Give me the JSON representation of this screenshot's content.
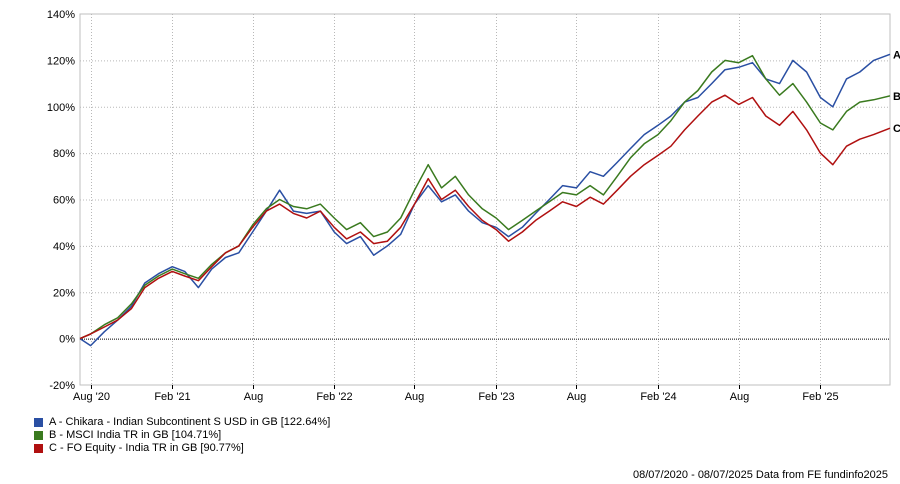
{
  "chart_data": {
    "type": "line",
    "title": "",
    "xlabel": "",
    "ylabel": "",
    "ylim": [
      -20,
      140
    ],
    "y_ticks": [
      -20,
      0,
      20,
      40,
      60,
      80,
      100,
      120,
      140
    ],
    "y_tick_labels": [
      "-20%",
      "0%",
      "20%",
      "40%",
      "60%",
      "80%",
      "100%",
      "120%",
      "140%"
    ],
    "x_ticks": [
      {
        "date": "2020-08-01",
        "label": "Aug '20"
      },
      {
        "date": "2021-02-01",
        "label": "Feb '21"
      },
      {
        "date": "2021-08-01",
        "label": "Aug"
      },
      {
        "date": "2022-02-01",
        "label": "Feb '22"
      },
      {
        "date": "2022-08-01",
        "label": "Aug"
      },
      {
        "date": "2023-02-01",
        "label": "Feb '23"
      },
      {
        "date": "2023-08-01",
        "label": "Aug"
      },
      {
        "date": "2024-02-01",
        "label": "Feb '24"
      },
      {
        "date": "2024-08-01",
        "label": "Aug"
      },
      {
        "date": "2025-02-01",
        "label": "Feb '25"
      }
    ],
    "xlim": [
      "2020-07-08",
      "2025-07-08"
    ],
    "grid": true,
    "legend_position": "bottom-left",
    "series": [
      {
        "name": "A - Chikara - Indian Subcontinent S USD in GB [122.64%]",
        "end_label": "A",
        "color": "#2a4fa3",
        "points": [
          [
            "2020-07-08",
            0
          ],
          [
            "2020-08-01",
            -3
          ],
          [
            "2020-09-01",
            3
          ],
          [
            "2020-10-01",
            8
          ],
          [
            "2020-11-01",
            14
          ],
          [
            "2020-12-01",
            24
          ],
          [
            "2021-01-01",
            28
          ],
          [
            "2021-02-01",
            31
          ],
          [
            "2021-03-01",
            29
          ],
          [
            "2021-04-01",
            22
          ],
          [
            "2021-05-01",
            30
          ],
          [
            "2021-06-01",
            35
          ],
          [
            "2021-07-01",
            37
          ],
          [
            "2021-08-01",
            46
          ],
          [
            "2021-09-01",
            55
          ],
          [
            "2021-10-01",
            64
          ],
          [
            "2021-11-01",
            55
          ],
          [
            "2021-12-01",
            54
          ],
          [
            "2022-01-01",
            55
          ],
          [
            "2022-02-01",
            46
          ],
          [
            "2022-03-01",
            41
          ],
          [
            "2022-04-01",
            44
          ],
          [
            "2022-05-01",
            36
          ],
          [
            "2022-06-01",
            40
          ],
          [
            "2022-07-01",
            45
          ],
          [
            "2022-08-01",
            58
          ],
          [
            "2022-09-01",
            66
          ],
          [
            "2022-10-01",
            59
          ],
          [
            "2022-11-01",
            62
          ],
          [
            "2022-12-01",
            55
          ],
          [
            "2023-01-01",
            50
          ],
          [
            "2023-02-01",
            48
          ],
          [
            "2023-03-01",
            44
          ],
          [
            "2023-04-01",
            48
          ],
          [
            "2023-05-01",
            54
          ],
          [
            "2023-06-01",
            60
          ],
          [
            "2023-07-01",
            66
          ],
          [
            "2023-08-01",
            65
          ],
          [
            "2023-09-01",
            72
          ],
          [
            "2023-10-01",
            70
          ],
          [
            "2023-11-01",
            76
          ],
          [
            "2023-12-01",
            82
          ],
          [
            "2024-01-01",
            88
          ],
          [
            "2024-02-01",
            92
          ],
          [
            "2024-03-01",
            96
          ],
          [
            "2024-04-01",
            102
          ],
          [
            "2024-05-01",
            104
          ],
          [
            "2024-06-01",
            110
          ],
          [
            "2024-07-01",
            116
          ],
          [
            "2024-08-01",
            117
          ],
          [
            "2024-09-01",
            119
          ],
          [
            "2024-10-01",
            112
          ],
          [
            "2024-11-01",
            110
          ],
          [
            "2024-12-01",
            120
          ],
          [
            "2025-01-01",
            115
          ],
          [
            "2025-02-01",
            104
          ],
          [
            "2025-03-01",
            100
          ],
          [
            "2025-04-01",
            112
          ],
          [
            "2025-05-01",
            115
          ],
          [
            "2025-06-01",
            120
          ],
          [
            "2025-07-08",
            122.64
          ]
        ]
      },
      {
        "name": "B - MSCI India TR in GB [104.71%]",
        "end_label": "B",
        "color": "#3a7a1f",
        "points": [
          [
            "2020-07-08",
            0
          ],
          [
            "2020-08-01",
            2
          ],
          [
            "2020-09-01",
            6
          ],
          [
            "2020-10-01",
            9
          ],
          [
            "2020-11-01",
            15
          ],
          [
            "2020-12-01",
            23
          ],
          [
            "2021-01-01",
            27
          ],
          [
            "2021-02-01",
            30
          ],
          [
            "2021-03-01",
            28
          ],
          [
            "2021-04-01",
            26
          ],
          [
            "2021-05-01",
            32
          ],
          [
            "2021-06-01",
            37
          ],
          [
            "2021-07-01",
            40
          ],
          [
            "2021-08-01",
            49
          ],
          [
            "2021-09-01",
            56
          ],
          [
            "2021-10-01",
            60
          ],
          [
            "2021-11-01",
            57
          ],
          [
            "2021-12-01",
            56
          ],
          [
            "2022-01-01",
            58
          ],
          [
            "2022-02-01",
            52
          ],
          [
            "2022-03-01",
            47
          ],
          [
            "2022-04-01",
            50
          ],
          [
            "2022-05-01",
            44
          ],
          [
            "2022-06-01",
            46
          ],
          [
            "2022-07-01",
            52
          ],
          [
            "2022-08-01",
            64
          ],
          [
            "2022-09-01",
            75
          ],
          [
            "2022-10-01",
            65
          ],
          [
            "2022-11-01",
            70
          ],
          [
            "2022-12-01",
            62
          ],
          [
            "2023-01-01",
            56
          ],
          [
            "2023-02-01",
            52
          ],
          [
            "2023-03-01",
            47
          ],
          [
            "2023-04-01",
            51
          ],
          [
            "2023-05-01",
            55
          ],
          [
            "2023-06-01",
            59
          ],
          [
            "2023-07-01",
            63
          ],
          [
            "2023-08-01",
            62
          ],
          [
            "2023-09-01",
            66
          ],
          [
            "2023-10-01",
            62
          ],
          [
            "2023-11-01",
            70
          ],
          [
            "2023-12-01",
            78
          ],
          [
            "2024-01-01",
            84
          ],
          [
            "2024-02-01",
            88
          ],
          [
            "2024-03-01",
            94
          ],
          [
            "2024-04-01",
            102
          ],
          [
            "2024-05-01",
            107
          ],
          [
            "2024-06-01",
            115
          ],
          [
            "2024-07-01",
            120
          ],
          [
            "2024-08-01",
            119
          ],
          [
            "2024-09-01",
            122
          ],
          [
            "2024-10-01",
            112
          ],
          [
            "2024-11-01",
            105
          ],
          [
            "2024-12-01",
            110
          ],
          [
            "2025-01-01",
            102
          ],
          [
            "2025-02-01",
            93
          ],
          [
            "2025-03-01",
            90
          ],
          [
            "2025-04-01",
            98
          ],
          [
            "2025-05-01",
            102
          ],
          [
            "2025-06-01",
            103
          ],
          [
            "2025-07-08",
            104.71
          ]
        ]
      },
      {
        "name": "C - FO Equity - India TR in GB [90.77%]",
        "end_label": "C",
        "color": "#b01010",
        "points": [
          [
            "2020-07-08",
            0
          ],
          [
            "2020-08-01",
            2
          ],
          [
            "2020-09-01",
            5
          ],
          [
            "2020-10-01",
            8
          ],
          [
            "2020-11-01",
            13
          ],
          [
            "2020-12-01",
            22
          ],
          [
            "2021-01-01",
            26
          ],
          [
            "2021-02-01",
            29
          ],
          [
            "2021-03-01",
            27
          ],
          [
            "2021-04-01",
            25
          ],
          [
            "2021-05-01",
            31
          ],
          [
            "2021-06-01",
            37
          ],
          [
            "2021-07-01",
            40
          ],
          [
            "2021-08-01",
            48
          ],
          [
            "2021-09-01",
            55
          ],
          [
            "2021-10-01",
            58
          ],
          [
            "2021-11-01",
            54
          ],
          [
            "2021-12-01",
            52
          ],
          [
            "2022-01-01",
            55
          ],
          [
            "2022-02-01",
            48
          ],
          [
            "2022-03-01",
            43
          ],
          [
            "2022-04-01",
            46
          ],
          [
            "2022-05-01",
            41
          ],
          [
            "2022-06-01",
            42
          ],
          [
            "2022-07-01",
            48
          ],
          [
            "2022-08-01",
            58
          ],
          [
            "2022-09-01",
            69
          ],
          [
            "2022-10-01",
            60
          ],
          [
            "2022-11-01",
            64
          ],
          [
            "2022-12-01",
            57
          ],
          [
            "2023-01-01",
            51
          ],
          [
            "2023-02-01",
            47
          ],
          [
            "2023-03-01",
            42
          ],
          [
            "2023-04-01",
            46
          ],
          [
            "2023-05-01",
            51
          ],
          [
            "2023-06-01",
            55
          ],
          [
            "2023-07-01",
            59
          ],
          [
            "2023-08-01",
            57
          ],
          [
            "2023-09-01",
            61
          ],
          [
            "2023-10-01",
            58
          ],
          [
            "2023-11-01",
            64
          ],
          [
            "2023-12-01",
            70
          ],
          [
            "2024-01-01",
            75
          ],
          [
            "2024-02-01",
            79
          ],
          [
            "2024-03-01",
            83
          ],
          [
            "2024-04-01",
            90
          ],
          [
            "2024-05-01",
            96
          ],
          [
            "2024-06-01",
            102
          ],
          [
            "2024-07-01",
            105
          ],
          [
            "2024-08-01",
            101
          ],
          [
            "2024-09-01",
            104
          ],
          [
            "2024-10-01",
            96
          ],
          [
            "2024-11-01",
            92
          ],
          [
            "2024-12-01",
            98
          ],
          [
            "2025-01-01",
            90
          ],
          [
            "2025-02-01",
            80
          ],
          [
            "2025-03-01",
            75
          ],
          [
            "2025-04-01",
            83
          ],
          [
            "2025-05-01",
            86
          ],
          [
            "2025-06-01",
            88
          ],
          [
            "2025-07-08",
            90.77
          ]
        ]
      }
    ]
  },
  "footer": {
    "text": "08/07/2020 - 08/07/2025 Data from FE fundinfo2025"
  }
}
